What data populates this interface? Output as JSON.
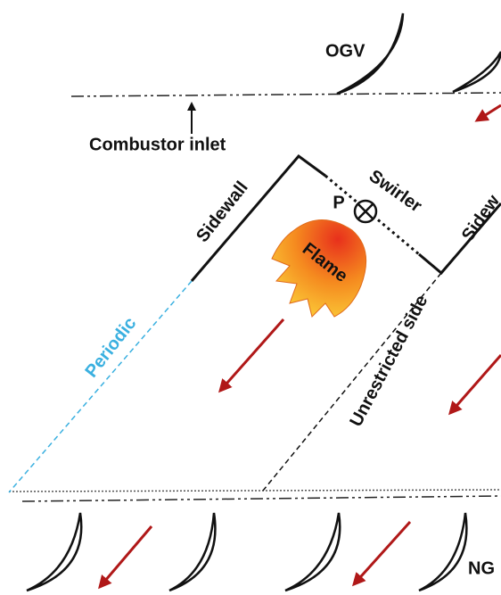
{
  "labels": {
    "ogv": "OGV",
    "combustor_inlet": "Combustor inlet",
    "sidewall_left": "Sidewall",
    "sidewall_right": "Sidew",
    "swirler": "Swirler",
    "point": "P",
    "flame": "Flame",
    "periodic": "Periodic",
    "unrestricted": "Unrestricted side",
    "ngv": "NG"
  }
}
